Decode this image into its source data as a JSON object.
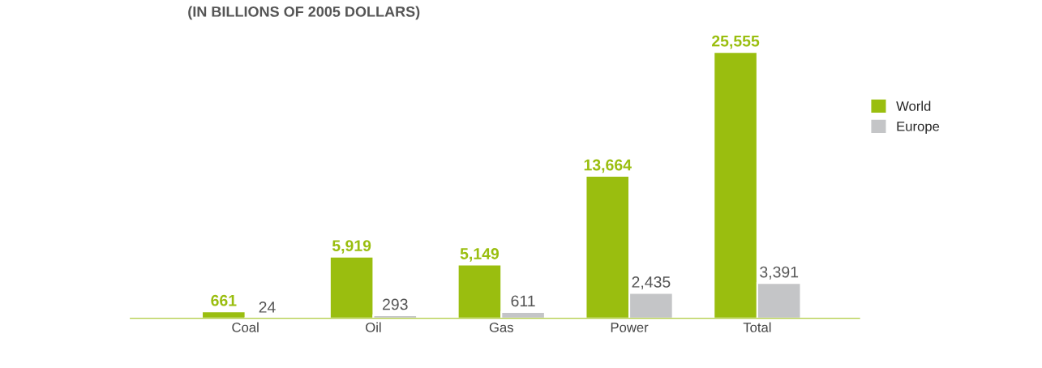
{
  "chart_data": {
    "type": "bar",
    "subtitle": "(IN BILLIONS OF 2005 DOLLARS)",
    "categories": [
      "Coal",
      "Oil",
      "Gas",
      "Power",
      "Total"
    ],
    "series": [
      {
        "name": "World",
        "color": "#9abe0f",
        "values": [
          661,
          5919,
          5149,
          13664,
          25555
        ],
        "value_labels": [
          "661",
          "5,919",
          "5,149",
          "13,664",
          "25,555"
        ]
      },
      {
        "name": "Europe",
        "color": "#c4c5c7",
        "values": [
          24,
          293,
          611,
          2435,
          3391
        ],
        "value_labels": [
          "24",
          "293",
          "611",
          "2,435",
          "3,391"
        ]
      }
    ],
    "legend": "right",
    "grid": false
  }
}
